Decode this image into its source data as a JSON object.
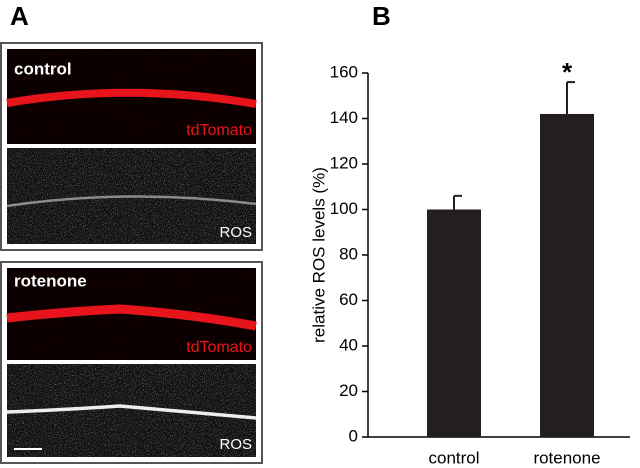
{
  "panel_labels": [
    "A",
    "B"
  ],
  "images": [
    {
      "label": "control",
      "channels": [
        "tdTomato",
        "ROS"
      ]
    },
    {
      "label": "rotenone",
      "channels": [
        "tdTomato",
        "ROS"
      ]
    }
  ],
  "chart_data": {
    "type": "bar",
    "ylabel": "relative ROS levels (%)",
    "categories": [
      "control",
      "rotenone"
    ],
    "values": [
      100,
      142
    ],
    "errors": [
      6,
      14
    ],
    "color": "#231f20",
    "annotation": "*",
    "ylim": [
      0,
      160
    ],
    "yticks": [
      0,
      20,
      40,
      60,
      80,
      100,
      120,
      140,
      160
    ]
  }
}
